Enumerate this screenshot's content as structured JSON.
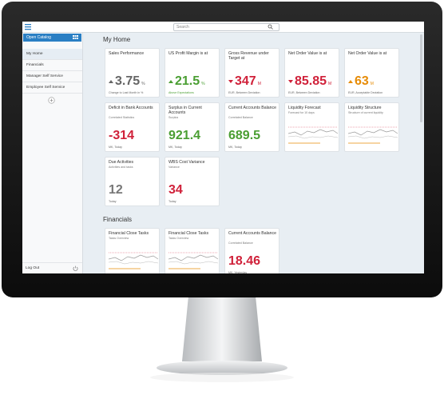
{
  "top_bar": {
    "search_placeholder": "Search"
  },
  "sidebar": {
    "catalog": "Open Catalog",
    "items": [
      "My Home",
      "Financials",
      "Manager Self Service",
      "Employee Self Service"
    ],
    "selected": 0,
    "logout": "Log Out"
  },
  "sections": [
    {
      "title": "My Home",
      "tiles": [
        {
          "kind": "kpi",
          "title": "Sales Performance",
          "value": "3.75",
          "unit": "%",
          "trend": "up",
          "color": "#666666",
          "footer": "Change to Last Month in %"
        },
        {
          "kind": "kpi",
          "title": "US Profit Margin is at",
          "value": "21.5",
          "unit": "%",
          "trend": "up",
          "color": "#4a9e32",
          "footer": "Above Expectations"
        },
        {
          "kind": "kpi",
          "title": "Gross Revenue under Target at",
          "value": "347",
          "unit": "M",
          "trend": "down",
          "color": "#d0213a",
          "footer": "EUR, Between Deviation"
        },
        {
          "kind": "kpi",
          "title": "Net Order Value is at",
          "value": "85.85",
          "unit": "M",
          "trend": "down",
          "color": "#d0213a",
          "footer": "EUR, Between Deviation"
        },
        {
          "kind": "kpi",
          "title": "Net Order Value is at",
          "value": "63",
          "unit": "M",
          "trend": "up",
          "color": "#e78c07",
          "footer": "EUR, Acceptable Deviation"
        },
        {
          "kind": "kpi",
          "title": "Deficit in Bank Accounts",
          "subtitle": "Correlated Statistics",
          "value": "-314",
          "color": "#d0213a",
          "footer": "MK, Today"
        },
        {
          "kind": "kpi",
          "title": "Surplus in Current Accounts",
          "subtitle": "Surplus",
          "value": "921.4",
          "color": "#4a9e32",
          "footer": "MK, Today"
        },
        {
          "kind": "kpi",
          "title": "Current Accounts Balance",
          "subtitle": "Correlated Balance",
          "value": "689.5",
          "color": "#4a9e32",
          "footer": "MK, Today"
        },
        {
          "kind": "chart",
          "title": "Liquidity Forecast",
          "subtitle": "Forecast for 10 days"
        },
        {
          "kind": "chart",
          "title": "Liquidity Structure",
          "subtitle": "Structure of current liquidity"
        },
        {
          "kind": "kpi",
          "title": "Due Activities",
          "subtitle": "Activities and tasks",
          "value": "12",
          "color": "#777777",
          "footer": "Today"
        },
        {
          "kind": "kpi",
          "title": "WBS Cost Variance",
          "subtitle": "Variance",
          "value": "34",
          "color": "#d0213a",
          "footer": "Today"
        }
      ]
    },
    {
      "title": "Financials",
      "tiles": [
        {
          "kind": "chart",
          "title": "Financial Close Tasks",
          "subtitle": "Tasks Overview"
        },
        {
          "kind": "chart",
          "title": "Financial Close Tasks",
          "subtitle": "Tasks Overview"
        },
        {
          "kind": "kpi",
          "title": "Current Accounts Balance",
          "subtitle": "Correlated Balance",
          "value": "18.46",
          "color": "#d0213a",
          "footer": "MK, Yesterday"
        }
      ]
    }
  ]
}
